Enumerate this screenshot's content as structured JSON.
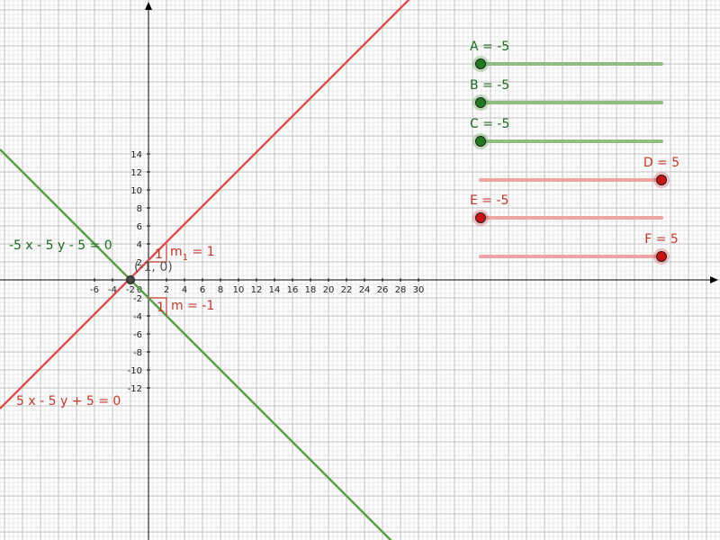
{
  "graph": {
    "x_range": [
      -7.8,
      31.6
    ],
    "y_range": [
      -14.2,
      15.6
    ],
    "x_ticks": [
      "-6",
      "-4",
      "-2",
      "0",
      "2",
      "4",
      "6",
      "8",
      "10",
      "12",
      "14",
      "16",
      "18",
      "20",
      "22",
      "24",
      "26",
      "28",
      "30"
    ],
    "y_ticks": [
      "-12",
      "-10",
      "-8",
      "-6",
      "-4",
      "-2",
      "2",
      "4",
      "6",
      "8",
      "10",
      "12",
      "14"
    ],
    "colors": {
      "grid_minor": "#e8e8e8",
      "grid_major": "#c0c0c0",
      "axis": "#000000",
      "red": "#d9534f",
      "red_text": "#c0392b",
      "green": "#5a9e4b",
      "green_text": "#1e6b1e",
      "slider_green": "#8fbf80",
      "slider_red": "#efa4a4",
      "point": "#444444"
    }
  },
  "lines": {
    "red_equation": "5 x - 5 y + 5 = 0",
    "green_equation": "-5 x - 5 y - 5 = 0"
  },
  "point": {
    "label": "(-1, 0)"
  },
  "slopes": {
    "red": {
      "run": "1",
      "m_text": "m",
      "m_sub": "1",
      "m_value": " = 1"
    },
    "green": {
      "run": "1",
      "label": "m = -1"
    }
  },
  "sliders": [
    {
      "label": "A = -5",
      "value": -5,
      "color": "green"
    },
    {
      "label": "B = -5",
      "value": -5,
      "color": "green"
    },
    {
      "label": "C = -5",
      "value": -5,
      "color": "green"
    },
    {
      "label": "D = 5",
      "value": 5,
      "color": "red"
    },
    {
      "label": "E = -5",
      "value": -5,
      "color": "red"
    },
    {
      "label": "F = 5",
      "value": 5,
      "color": "red"
    }
  ]
}
